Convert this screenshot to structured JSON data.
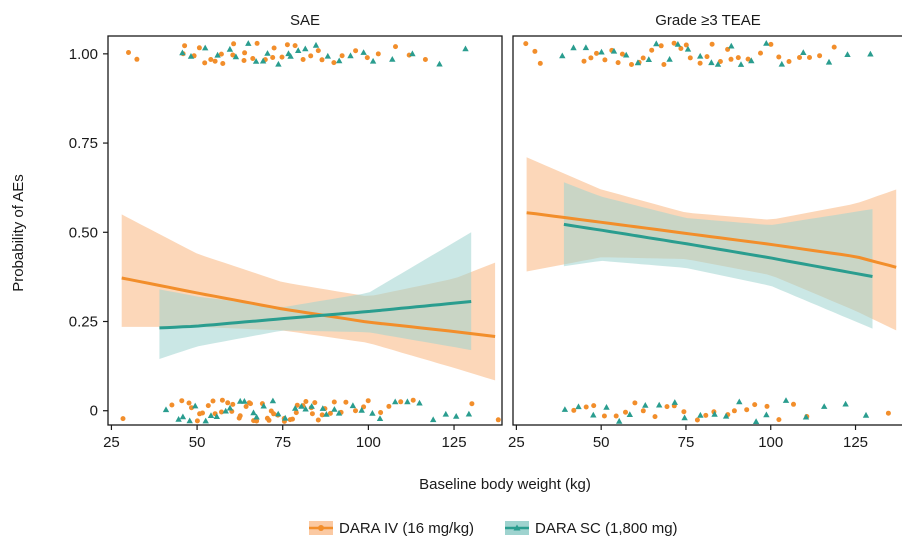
{
  "chart_data": {
    "type": "scatter",
    "xlabel": "Baseline body weight (kg)",
    "ylabel": "Probability of AEs",
    "xlim": [
      24,
      139
    ],
    "ylim": [
      -0.04,
      1.05
    ],
    "x_ticks": [
      25,
      50,
      75,
      100,
      125
    ],
    "x_tick_labels": [
      "25",
      "50",
      "75",
      "100",
      "125"
    ],
    "y_ticks": [
      0,
      0.25,
      0.5,
      0.75,
      1.0
    ],
    "y_tick_labels": [
      "0",
      "0.25",
      "0.50",
      "0.75",
      "1.00"
    ],
    "grid": false,
    "legend_position": "bottom",
    "colors": {
      "iv": "#f28e2b",
      "sc": "#2a9d8f",
      "iv_band": "#fbc9a2",
      "sc_band": "#9fd3cf"
    },
    "legend": [
      {
        "key": "iv",
        "label": "DARA IV (16 mg/kg)",
        "marker": "circle"
      },
      {
        "key": "sc",
        "label": "DARA SC (1,800 mg)",
        "marker": "triangle"
      }
    ],
    "panels": [
      {
        "title": "SAE",
        "series": [
          {
            "key": "iv",
            "fit": [
              [
                28,
                0.372
              ],
              [
                50,
                0.33
              ],
              [
                75,
                0.285
              ],
              [
                100,
                0.248
              ],
              [
                125,
                0.222
              ],
              [
                137,
                0.208
              ]
            ],
            "ci_upper": [
              [
                28,
                0.55
              ],
              [
                50,
                0.44
              ],
              [
                75,
                0.36
              ],
              [
                100,
                0.32
              ],
              [
                125,
                0.37
              ],
              [
                137,
                0.415
              ]
            ],
            "ci_lower": [
              [
                28,
                0.235
              ],
              [
                50,
                0.235
              ],
              [
                75,
                0.225
              ],
              [
                100,
                0.19
              ],
              [
                125,
                0.12
              ],
              [
                137,
                0.085
              ]
            ],
            "events": [
              30,
              33,
              46,
              47,
              49,
              51,
              52,
              54,
              55,
              57,
              58,
              60,
              61,
              63,
              64,
              66,
              68,
              70,
              72,
              73,
              75,
              77,
              79,
              81,
              83,
              85,
              87,
              90,
              93,
              96,
              99,
              103,
              108,
              112,
              117
            ],
            "non_events": [
              28,
              43,
              45,
              47,
              48,
              50,
              51,
              52,
              53,
              55,
              56,
              57,
              58,
              59,
              60,
              61,
              62,
              63,
              64,
              65,
              66,
              67,
              68,
              69,
              70,
              71,
              72,
              73,
              74,
              75,
              76,
              77,
              78,
              79,
              80,
              81,
              82,
              83,
              84,
              85,
              86,
              87,
              88,
              89,
              90,
              92,
              94,
              96,
              98,
              100,
              103,
              106,
              109,
              113,
              130,
              138
            ]
          },
          {
            "key": "sc",
            "fit": [
              [
                39,
                0.232
              ],
              [
                50,
                0.237
              ],
              [
                75,
                0.258
              ],
              [
                100,
                0.278
              ],
              [
                130,
                0.306
              ]
            ],
            "ci_upper": [
              [
                39,
                0.34
              ],
              [
                50,
                0.32
              ],
              [
                75,
                0.29
              ],
              [
                100,
                0.33
              ],
              [
                130,
                0.5
              ]
            ],
            "ci_lower": [
              [
                39,
                0.145
              ],
              [
                50,
                0.18
              ],
              [
                75,
                0.225
              ],
              [
                100,
                0.22
              ],
              [
                130,
                0.17
              ]
            ],
            "events": [
              45,
              48,
              52,
              56,
              59,
              62,
              65,
              67,
              69,
              71,
              74,
              76,
              78,
              80,
              82,
              85,
              88,
              91,
              95,
              98,
              102,
              107,
              113,
              121,
              129
            ],
            "non_events": [
              41,
              44,
              46,
              48,
              50,
              52,
              54,
              56,
              58,
              60,
              62,
              64,
              66,
              68,
              70,
              72,
              74,
              76,
              78,
              80,
              82,
              84,
              86,
              88,
              90,
              92,
              95,
              98,
              101,
              104,
              108,
              111,
              115,
              119,
              122,
              126,
              130
            ]
          }
        ]
      },
      {
        "title": "Grade ≥3 TEAE",
        "series": [
          {
            "key": "iv",
            "fit": [
              [
                28,
                0.555
              ],
              [
                50,
                0.528
              ],
              [
                75,
                0.497
              ],
              [
                100,
                0.466
              ],
              [
                125,
                0.432
              ],
              [
                137,
                0.402
              ]
            ],
            "ci_upper": [
              [
                28,
                0.71
              ],
              [
                50,
                0.62
              ],
              [
                75,
                0.555
              ],
              [
                100,
                0.535
              ],
              [
                125,
                0.58
              ],
              [
                137,
                0.62
              ]
            ],
            "ci_lower": [
              [
                28,
                0.39
              ],
              [
                50,
                0.43
              ],
              [
                75,
                0.425
              ],
              [
                100,
                0.38
              ],
              [
                125,
                0.28
              ],
              [
                137,
                0.225
              ]
            ],
            "events": [
              28,
              30,
              32,
              45,
              47,
              49,
              51,
              53,
              55,
              57,
              59,
              61,
              63,
              65,
              67,
              69,
              71,
              73,
              75,
              77,
              79,
              81,
              83,
              85,
              87,
              89,
              91,
              94,
              97,
              100,
              103,
              106,
              109,
              112,
              115,
              119
            ],
            "non_events": [
              42,
              45,
              48,
              51,
              54,
              57,
              60,
              63,
              66,
              69,
              72,
              75,
              78,
              81,
              84,
              87,
              90,
              93,
              96,
              99,
              102,
              106,
              110,
              135,
              139
            ]
          },
          {
            "key": "sc",
            "fit": [
              [
                39,
                0.522
              ],
              [
                50,
                0.506
              ],
              [
                75,
                0.468
              ],
              [
                100,
                0.428
              ],
              [
                130,
                0.376
              ]
            ],
            "ci_upper": [
              [
                39,
                0.64
              ],
              [
                50,
                0.6
              ],
              [
                75,
                0.54
              ],
              [
                100,
                0.52
              ],
              [
                130,
                0.565
              ]
            ],
            "ci_lower": [
              [
                39,
                0.405
              ],
              [
                50,
                0.42
              ],
              [
                75,
                0.4
              ],
              [
                100,
                0.35
              ],
              [
                130,
                0.23
              ]
            ],
            "events": [
              38,
              42,
              46,
              50,
              54,
              58,
              61,
              64,
              67,
              70,
              73,
              76,
              79,
              82,
              85,
              88,
              91,
              95,
              99,
              104,
              110,
              117,
              123,
              130
            ],
            "non_events": [
              40,
              43,
              47,
              51,
              55,
              59,
              63,
              67,
              71,
              75,
              79,
              83,
              87,
              91,
              95,
              99,
              104,
              110,
              116,
              122,
              128
            ]
          }
        ]
      }
    ]
  }
}
